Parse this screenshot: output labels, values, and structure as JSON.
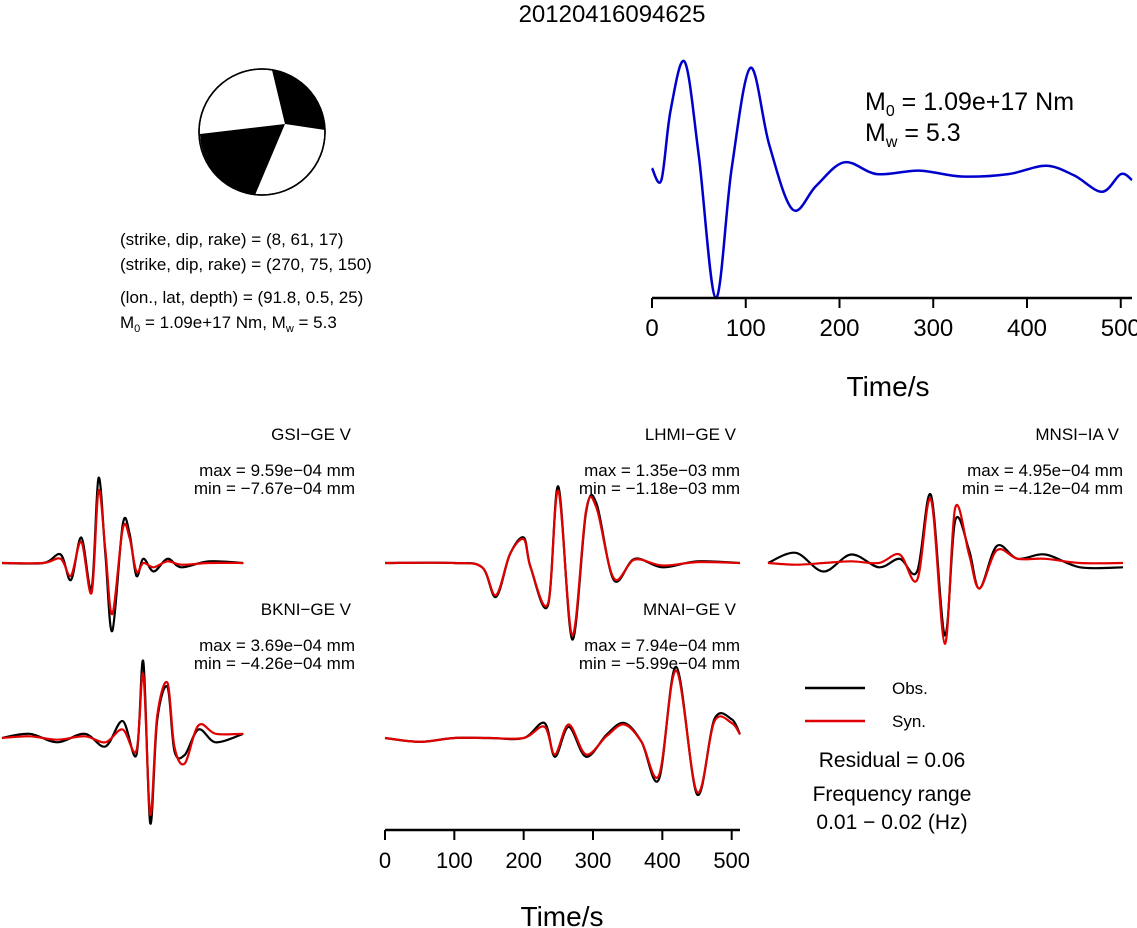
{
  "title": "20120416094625",
  "mechanism": {
    "lines": [
      "(strike, dip, rake) = (8, 61, 17)",
      "(strike, dip, rake) = (270, 75, 150)",
      "(lon., lat, depth) = (91.8, 0.5, 25)"
    ],
    "moment_line": {
      "m0_label": "M",
      "m0_sub": "0",
      "m0_value": " = 1.09e+17 Nm, ",
      "mw_label": "M",
      "mw_sub": "w",
      "mw_value": " = 5.3"
    }
  },
  "stf": {
    "m0_label": "M",
    "m0_sub": "0",
    "m0_value": " = 1.09e+17 Nm",
    "mw_label": "M",
    "mw_sub": "w",
    "mw_value": " = 5.3",
    "xlabel": "Time/s",
    "xticks": [
      "0",
      "100",
      "200",
      "300",
      "400",
      "500"
    ]
  },
  "waveform_axis": {
    "xlabel": "Time/s",
    "xticks": [
      "0",
      "100",
      "200",
      "300",
      "400",
      "500"
    ]
  },
  "legend": {
    "obs": "Obs.",
    "syn": "Syn."
  },
  "residual": "Residual = 0.06",
  "freq_title": "Frequency range",
  "freq_value": "0.01 − 0.02 (Hz)",
  "colors": {
    "obs": "#000000",
    "syn": "#e00000",
    "stf": "#0000cc"
  },
  "chart_data": [
    {
      "type": "line",
      "name": "source-time-function",
      "xlim": [
        0,
        512
      ],
      "x": [
        0,
        10,
        20,
        35,
        50,
        68,
        85,
        105,
        125,
        150,
        175,
        205,
        240,
        285,
        330,
        380,
        420,
        450,
        480,
        500,
        512
      ],
      "y": [
        0.1,
        0.0,
        0.6,
        1.0,
        0.2,
        -1.0,
        0.1,
        0.95,
        0.3,
        -0.25,
        -0.05,
        0.15,
        0.05,
        0.08,
        0.03,
        0.05,
        0.12,
        0.04,
        -0.1,
        0.05,
        0.0
      ]
    },
    {
      "type": "line",
      "station": "GSI−GE V",
      "max_text": "max = 9.59e−04 mm",
      "min_text": "min = −7.67e−04 mm",
      "xlim": [
        0,
        512
      ],
      "series": [
        {
          "name": "Obs.",
          "x": [
            0,
            60,
            85,
            100,
            115,
            130,
            140,
            150,
            160,
            175,
            185,
            195,
            205,
            220,
            240,
            260,
            300,
            350
          ],
          "y": [
            0,
            0,
            0.1,
            -0.2,
            0.3,
            -0.3,
            1.0,
            0.1,
            -0.8,
            0.45,
            0.35,
            -0.15,
            0.05,
            -0.1,
            0.05,
            -0.05,
            0.02,
            0
          ]
        },
        {
          "name": "Syn.",
          "x": [
            0,
            60,
            85,
            100,
            115,
            130,
            140,
            150,
            160,
            175,
            185,
            195,
            205,
            220,
            240,
            260,
            300,
            350
          ],
          "y": [
            0,
            0,
            0.05,
            -0.15,
            0.25,
            -0.35,
            0.85,
            0.15,
            -0.6,
            0.4,
            0.3,
            -0.1,
            0.0,
            -0.05,
            0.02,
            -0.02,
            0.0,
            0
          ]
        }
      ]
    },
    {
      "type": "line",
      "station": "LHMI−GE V",
      "max_text": "max = 1.35e−03 mm",
      "min_text": "min = −1.18e−03 mm",
      "xlim": [
        0,
        512
      ],
      "series": [
        {
          "name": "Obs.",
          "x": [
            0,
            100,
            140,
            160,
            180,
            200,
            210,
            235,
            250,
            270,
            290,
            305,
            330,
            360,
            400,
            450,
            512
          ],
          "y": [
            0,
            0,
            -0.05,
            -0.4,
            0.1,
            0.3,
            -0.05,
            -0.5,
            0.9,
            -0.9,
            0.6,
            0.7,
            -0.2,
            0.05,
            -0.05,
            0.02,
            0
          ]
        },
        {
          "name": "Syn.",
          "x": [
            0,
            100,
            140,
            160,
            180,
            200,
            210,
            235,
            250,
            270,
            290,
            305,
            330,
            360,
            400,
            450,
            512
          ],
          "y": [
            0,
            0,
            -0.05,
            -0.38,
            0.1,
            0.28,
            -0.05,
            -0.48,
            0.85,
            -0.85,
            0.62,
            0.65,
            -0.18,
            0.04,
            -0.03,
            0.01,
            0
          ]
        }
      ]
    },
    {
      "type": "line",
      "station": "MNSI−IA V",
      "max_text": "max = 4.95e−04 mm",
      "min_text": "min = −4.12e−04 mm",
      "xlim": [
        0,
        512
      ],
      "series": [
        {
          "name": "Obs.",
          "x": [
            0,
            40,
            80,
            120,
            160,
            190,
            215,
            235,
            255,
            270,
            290,
            305,
            330,
            360,
            400,
            450,
            512
          ],
          "y": [
            0,
            0.12,
            -0.1,
            0.1,
            -0.05,
            0.05,
            -0.1,
            0.8,
            -0.85,
            0.5,
            0.15,
            -0.3,
            0.2,
            0.05,
            0.1,
            -0.05,
            -0.05
          ]
        },
        {
          "name": "Syn.",
          "x": [
            0,
            40,
            80,
            120,
            160,
            190,
            215,
            235,
            255,
            270,
            290,
            305,
            330,
            360,
            400,
            450,
            512
          ],
          "y": [
            0,
            -0.02,
            0.0,
            0.02,
            0.0,
            0.1,
            -0.2,
            0.75,
            -0.95,
            0.65,
            0.1,
            -0.3,
            0.15,
            0.05,
            0.05,
            0.0,
            0.0
          ]
        }
      ]
    },
    {
      "type": "line",
      "station": "BKNI−GE V",
      "max_text": "max = 3.69e−04 mm",
      "min_text": "min = −4.26e−04 mm",
      "xlim": [
        0,
        512
      ],
      "series": [
        {
          "name": "Obs.",
          "x": [
            0,
            40,
            80,
            120,
            150,
            175,
            195,
            205,
            215,
            225,
            240,
            250,
            265,
            285,
            310,
            350
          ],
          "y": [
            0,
            0.05,
            -0.05,
            0.05,
            -0.1,
            0.2,
            -0.2,
            0.9,
            -1.0,
            0.2,
            0.6,
            -0.15,
            -0.2,
            0.1,
            -0.05,
            0.05
          ]
        },
        {
          "name": "Syn.",
          "x": [
            0,
            40,
            80,
            120,
            150,
            175,
            195,
            205,
            215,
            225,
            240,
            250,
            265,
            285,
            310,
            350
          ],
          "y": [
            0,
            0.02,
            -0.02,
            0.02,
            -0.05,
            0.1,
            -0.15,
            0.75,
            -0.9,
            0.25,
            0.65,
            -0.1,
            -0.3,
            0.15,
            0.05,
            0.05
          ]
        }
      ]
    },
    {
      "type": "line",
      "station": "MNAI−GE V",
      "max_text": "max = 7.94e−04 mm",
      "min_text": "min = −5.99e−04 mm",
      "xlim": [
        0,
        512
      ],
      "series": [
        {
          "name": "Obs.",
          "x": [
            0,
            50,
            100,
            150,
            200,
            230,
            245,
            265,
            290,
            320,
            345,
            370,
            395,
            420,
            450,
            475,
            500,
            512
          ],
          "y": [
            0,
            -0.05,
            0,
            0,
            0,
            0.2,
            -0.25,
            0.15,
            -0.25,
            0.05,
            0.2,
            -0.05,
            -0.55,
            0.95,
            -0.75,
            0.25,
            0.25,
            0.05
          ]
        },
        {
          "name": "Syn.",
          "x": [
            0,
            50,
            100,
            150,
            200,
            230,
            245,
            265,
            290,
            320,
            345,
            370,
            395,
            420,
            450,
            475,
            500,
            512
          ],
          "y": [
            0,
            -0.05,
            0,
            0,
            0,
            0.15,
            -0.22,
            0.18,
            -0.22,
            0.03,
            0.18,
            -0.05,
            -0.5,
            0.9,
            -0.72,
            0.22,
            0.2,
            0.05
          ]
        }
      ]
    }
  ]
}
